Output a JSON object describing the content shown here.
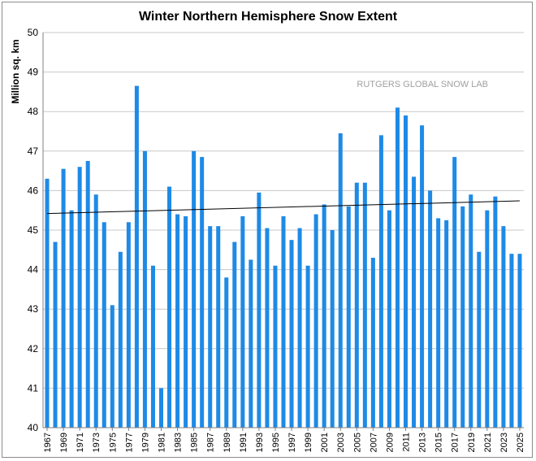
{
  "chart_data": {
    "type": "bar",
    "title": "Winter Northern Hemisphere Snow Extent",
    "ylabel": "Million sq. km",
    "xlabel": "",
    "ylim": [
      40,
      50
    ],
    "yticks": [
      40,
      41,
      42,
      43,
      44,
      45,
      46,
      47,
      48,
      49,
      50
    ],
    "grid": "horizontal",
    "watermark": "RUTGERS GLOBAL SNOW LAB",
    "bar_color": "#1e8ae6",
    "trendline": {
      "start": 45.42,
      "end": 45.74,
      "color": "#000000"
    },
    "categories": [
      1967,
      1968,
      1969,
      1970,
      1971,
      1972,
      1973,
      1974,
      1975,
      1976,
      1977,
      1978,
      1979,
      1980,
      1981,
      1982,
      1983,
      1984,
      1985,
      1986,
      1987,
      1988,
      1989,
      1990,
      1991,
      1992,
      1993,
      1994,
      1995,
      1996,
      1997,
      1998,
      1999,
      2000,
      2001,
      2002,
      2003,
      2004,
      2005,
      2006,
      2007,
      2008,
      2009,
      2010,
      2011,
      2012,
      2013,
      2014,
      2015,
      2016,
      2017,
      2018,
      2019,
      2020,
      2021,
      2022,
      2023,
      2024,
      2025
    ],
    "tick_labels": [
      "1967",
      "1969",
      "1971",
      "1973",
      "1975",
      "1977",
      "1979",
      "1981",
      "1983",
      "1985",
      "1987",
      "1989",
      "1991",
      "1993",
      "1995",
      "1997",
      "1999",
      "2001",
      "2003",
      "2005",
      "2007",
      "2009",
      "2011",
      "2013",
      "2015",
      "2017",
      "2019",
      "2021",
      "2023",
      "2025"
    ],
    "values": [
      46.3,
      44.7,
      46.55,
      45.5,
      46.6,
      46.75,
      45.9,
      45.2,
      43.1,
      44.45,
      45.2,
      48.65,
      47.0,
      44.1,
      41.0,
      46.1,
      45.4,
      45.35,
      47.0,
      46.85,
      45.1,
      45.1,
      43.8,
      44.7,
      45.35,
      44.25,
      45.95,
      45.05,
      44.1,
      45.35,
      44.75,
      45.05,
      44.1,
      45.4,
      45.65,
      45.0,
      47.45,
      45.6,
      46.2,
      46.2,
      44.3,
      47.4,
      45.5,
      48.1,
      47.9,
      46.35,
      47.65,
      46.0,
      45.3,
      45.25,
      46.85,
      45.6,
      45.9,
      44.45,
      45.5,
      45.85,
      45.1,
      44.4,
      44.4
    ]
  }
}
